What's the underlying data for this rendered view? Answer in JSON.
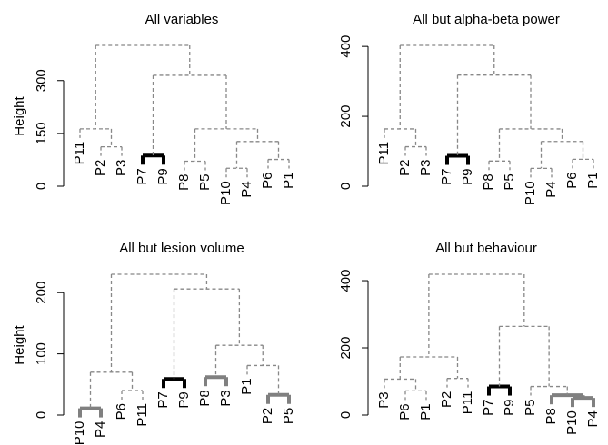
{
  "chart_data": [
    {
      "type": "dendrogram",
      "title": "All variables",
      "ylabel": "Height",
      "ylim": [
        0,
        400
      ],
      "yticks": [
        0,
        150,
        300
      ],
      "line_color": "#888888",
      "label_color": "#888888",
      "tree": {
        "height": 400,
        "children": [
          {
            "height": 163,
            "children": [
              {
                "label": "P11"
              },
              {
                "height": 112,
                "children": [
                  {
                    "label": "P2"
                  },
                  {
                    "label": "P3"
                  }
                ]
              }
            ]
          },
          {
            "height": 315,
            "children": [
              {
                "height": 87,
                "color": "#000000",
                "bold": true,
                "children": [
                  {
                    "label": "P7",
                    "color": "#000000"
                  },
                  {
                    "label": "P9",
                    "color": "#000000"
                  }
                ]
              },
              {
                "height": 163,
                "children": [
                  {
                    "height": 71,
                    "children": [
                      {
                        "label": "P8"
                      },
                      {
                        "label": "P5"
                      }
                    ]
                  },
                  {
                    "height": 127,
                    "children": [
                      {
                        "height": 51,
                        "children": [
                          {
                            "label": "P10"
                          },
                          {
                            "label": "P4"
                          }
                        ]
                      },
                      {
                        "height": 76,
                        "children": [
                          {
                            "label": "P6"
                          },
                          {
                            "label": "P1"
                          }
                        ]
                      }
                    ]
                  }
                ]
              }
            ]
          }
        ]
      }
    },
    {
      "type": "dendrogram",
      "title": "All but alpha-beta power",
      "ylim": [
        0,
        403
      ],
      "yticks": [
        0,
        200,
        400
      ],
      "line_color": "#888888",
      "label_color": "#888888",
      "tree": {
        "height": 403,
        "children": [
          {
            "height": 164,
            "children": [
              {
                "label": "P11"
              },
              {
                "height": 113,
                "children": [
                  {
                    "label": "P2"
                  },
                  {
                    "label": "P3"
                  }
                ]
              }
            ]
          },
          {
            "height": 318,
            "children": [
              {
                "height": 87,
                "color": "#000000",
                "bold": true,
                "children": [
                  {
                    "label": "P7",
                    "color": "#000000"
                  },
                  {
                    "label": "P9",
                    "color": "#000000"
                  }
                ]
              },
              {
                "height": 164,
                "children": [
                  {
                    "height": 72,
                    "children": [
                      {
                        "label": "P8"
                      },
                      {
                        "label": "P5"
                      }
                    ]
                  },
                  {
                    "height": 128,
                    "children": [
                      {
                        "height": 51,
                        "children": [
                          {
                            "label": "P10"
                          },
                          {
                            "label": "P4"
                          }
                        ]
                      },
                      {
                        "height": 77,
                        "children": [
                          {
                            "label": "P6"
                          },
                          {
                            "label": "P1"
                          }
                        ]
                      }
                    ]
                  }
                ]
              }
            ]
          }
        ]
      }
    },
    {
      "type": "dendrogram",
      "title": "All but lesion volume",
      "ylabel": "Height",
      "ylim": [
        0,
        230
      ],
      "yticks": [
        0,
        100,
        200
      ],
      "line_color": "#888888",
      "label_color": "#888888",
      "tree": {
        "height": 230,
        "children": [
          {
            "height": 70,
            "children": [
              {
                "height": 11,
                "color": "#808080",
                "bold": true,
                "children": [
                  {
                    "label": "P10"
                  },
                  {
                    "label": "P4"
                  }
                ]
              },
              {
                "height": 40,
                "children": [
                  {
                    "label": "P6"
                  },
                  {
                    "label": "P11"
                  }
                ]
              }
            ]
          },
          {
            "height": 206,
            "children": [
              {
                "height": 59,
                "color": "#000000",
                "bold": true,
                "children": [
                  {
                    "label": "P7",
                    "color": "#000000"
                  },
                  {
                    "label": "P9",
                    "color": "#000000"
                  }
                ]
              },
              {
                "height": 114,
                "children": [
                  {
                    "height": 62,
                    "color": "#808080",
                    "bold": true,
                    "children": [
                      {
                        "label": "P8"
                      },
                      {
                        "label": "P3"
                      }
                    ]
                  },
                  {
                    "height": 81,
                    "children": [
                      {
                        "label": "P1"
                      },
                      {
                        "height": 33,
                        "color": "#808080",
                        "bold": true,
                        "children": [
                          {
                            "label": "P2"
                          },
                          {
                            "label": "P5"
                          }
                        ]
                      }
                    ]
                  }
                ]
              }
            ]
          }
        ]
      }
    },
    {
      "type": "dendrogram",
      "title": "All but behaviour",
      "ylim": [
        0,
        419
      ],
      "yticks": [
        0,
        200,
        400
      ],
      "line_color": "#888888",
      "label_color": "#888888",
      "tree": {
        "height": 419,
        "children": [
          {
            "height": 173,
            "children": [
              {
                "height": 107,
                "children": [
                  {
                    "label": "P3"
                  },
                  {
                    "height": 72,
                    "children": [
                      {
                        "label": "P6"
                      },
                      {
                        "label": "P1"
                      }
                    ]
                  }
                ]
              },
              {
                "height": 109,
                "children": [
                  {
                    "label": "P2"
                  },
                  {
                    "label": "P11"
                  }
                ]
              }
            ]
          },
          {
            "height": 264,
            "children": [
              {
                "height": 85,
                "color": "#000000",
                "bold": true,
                "children": [
                  {
                    "label": "P7",
                    "color": "#000000"
                  },
                  {
                    "label": "P9",
                    "color": "#000000"
                  }
                ]
              },
              {
                "height": 85,
                "children": [
                  {
                    "label": "P5"
                  },
                  {
                    "height": 59,
                    "color": "#808080",
                    "bold": true,
                    "children": [
                      {
                        "label": "P8"
                      },
                      {
                        "height": 51,
                        "color": "#808080",
                        "bold": true,
                        "children": [
                          {
                            "label": "P10"
                          },
                          {
                            "label": "P4"
                          }
                        ]
                      }
                    ]
                  }
                ]
              }
            ]
          }
        ]
      }
    }
  ]
}
